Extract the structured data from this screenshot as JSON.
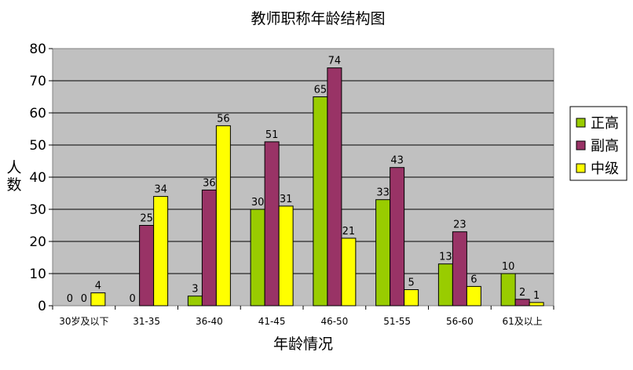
{
  "chart_data": {
    "type": "bar",
    "title": "教师职称年龄结构图",
    "xlabel": "年龄情况",
    "ylabel": "人数",
    "categories": [
      "30岁及以下",
      "31-35",
      "36-40",
      "41-45",
      "46-50",
      "51-55",
      "56-60",
      "61及以上"
    ],
    "series": [
      {
        "name": "正高",
        "color": "#99cc00",
        "values": [
          0,
          0,
          3,
          30,
          65,
          33,
          13,
          10
        ]
      },
      {
        "name": "副高",
        "color": "#993366",
        "values": [
          0,
          25,
          36,
          51,
          74,
          43,
          23,
          2
        ]
      },
      {
        "name": "中级",
        "color": "#ffff00",
        "values": [
          4,
          34,
          56,
          31,
          21,
          5,
          6,
          1
        ]
      }
    ],
    "ylim": [
      0,
      80
    ],
    "yticks": [
      0,
      10,
      20,
      30,
      40,
      50,
      60,
      70,
      80
    ],
    "grid": true,
    "plot_background": "#c0c0c0",
    "legend_position": "right"
  }
}
